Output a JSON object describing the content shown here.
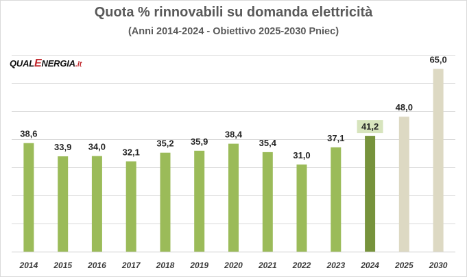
{
  "header": {
    "title": "Quota % rinnovabili su domanda elettricità",
    "subtitle": "(Anni 2014-2024 - Obiettivo 2025-2030 Pniec)"
  },
  "logo": {
    "part1": "QUAL",
    "part2": "E",
    "part3": "NERGIA",
    "part4": ".it"
  },
  "colors": {
    "historical": "#9bbb59",
    "highlight": "#77933c",
    "target": "#ddd9c3",
    "highlight_label_bg": "#d7e4bd",
    "grid": "#d9d9d9"
  },
  "chart_data": {
    "type": "bar",
    "title": "Quota % rinnovabili su domanda elettricità",
    "subtitle": "(Anni 2014-2024 - Obiettivo 2025-2030 Pniec)",
    "categories": [
      "2014",
      "2015",
      "2016",
      "2017",
      "2018",
      "2019",
      "2020",
      "2021",
      "2022",
      "2023",
      "2024",
      "2025",
      "2030"
    ],
    "values": [
      38.6,
      33.9,
      34.0,
      32.1,
      35.2,
      35.9,
      38.4,
      35.4,
      31.0,
      37.1,
      41.2,
      48.0,
      65.0
    ],
    "labels": [
      "38,6",
      "33,9",
      "34,0",
      "32,1",
      "35,2",
      "35,9",
      "38,4",
      "35,4",
      "31,0",
      "37,1",
      "41,2",
      "48,0",
      "65,0"
    ],
    "bar_kinds": [
      "historical",
      "historical",
      "historical",
      "historical",
      "historical",
      "historical",
      "historical",
      "historical",
      "historical",
      "historical",
      "highlight",
      "target",
      "target"
    ],
    "ylim": [
      0,
      70
    ],
    "grid_step": 10,
    "grid": true,
    "y_tick_labels_shown": false,
    "xlabel": "",
    "ylabel": ""
  }
}
